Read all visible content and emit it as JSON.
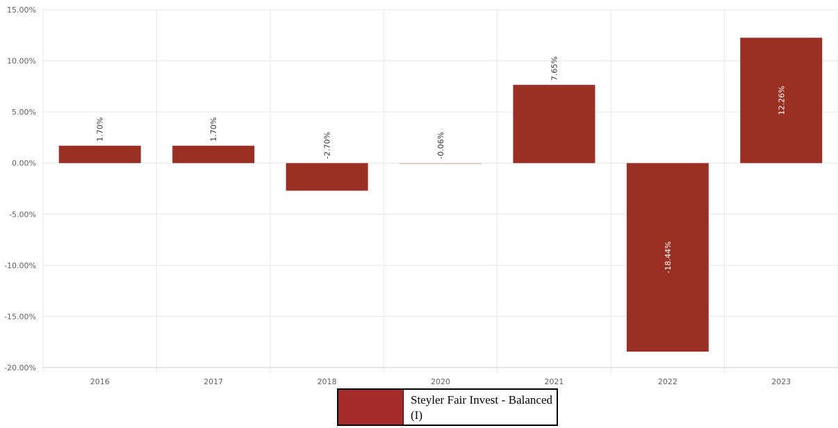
{
  "chart_data": {
    "type": "bar",
    "categories": [
      "2016",
      "2017",
      "2018",
      "2020",
      "2021",
      "2022",
      "2023"
    ],
    "series": [
      {
        "name": "Steyler Fair Invest - Balanced (I)",
        "values": [
          1.7,
          1.7,
          -2.7,
          -0.06,
          7.65,
          -18.44,
          12.26
        ],
        "labels": [
          "1.70%",
          "1.70%",
          "-2.70%",
          "-0.06%",
          "7.65%",
          "-18.44%",
          "12.26%"
        ]
      }
    ],
    "yticks": [
      "15.00%",
      "10.00%",
      "5.00%",
      "0.00%",
      "-5.00%",
      "-10.00%",
      "-15.00%",
      "-20.00%"
    ],
    "ytick_values": [
      15,
      10,
      5,
      0,
      -5,
      -10,
      -15,
      -20
    ],
    "ylim": [
      -20,
      15
    ],
    "grid": true,
    "legend_position": "bottom-center",
    "colors": {
      "bar": "#9a2f24",
      "bar_light": "#d9c3bc",
      "legend_swatch": "#a52a2a",
      "grid": "#e6e6e6"
    }
  },
  "legend": {
    "label": "Steyler Fair Invest - Balanced (I)"
  }
}
